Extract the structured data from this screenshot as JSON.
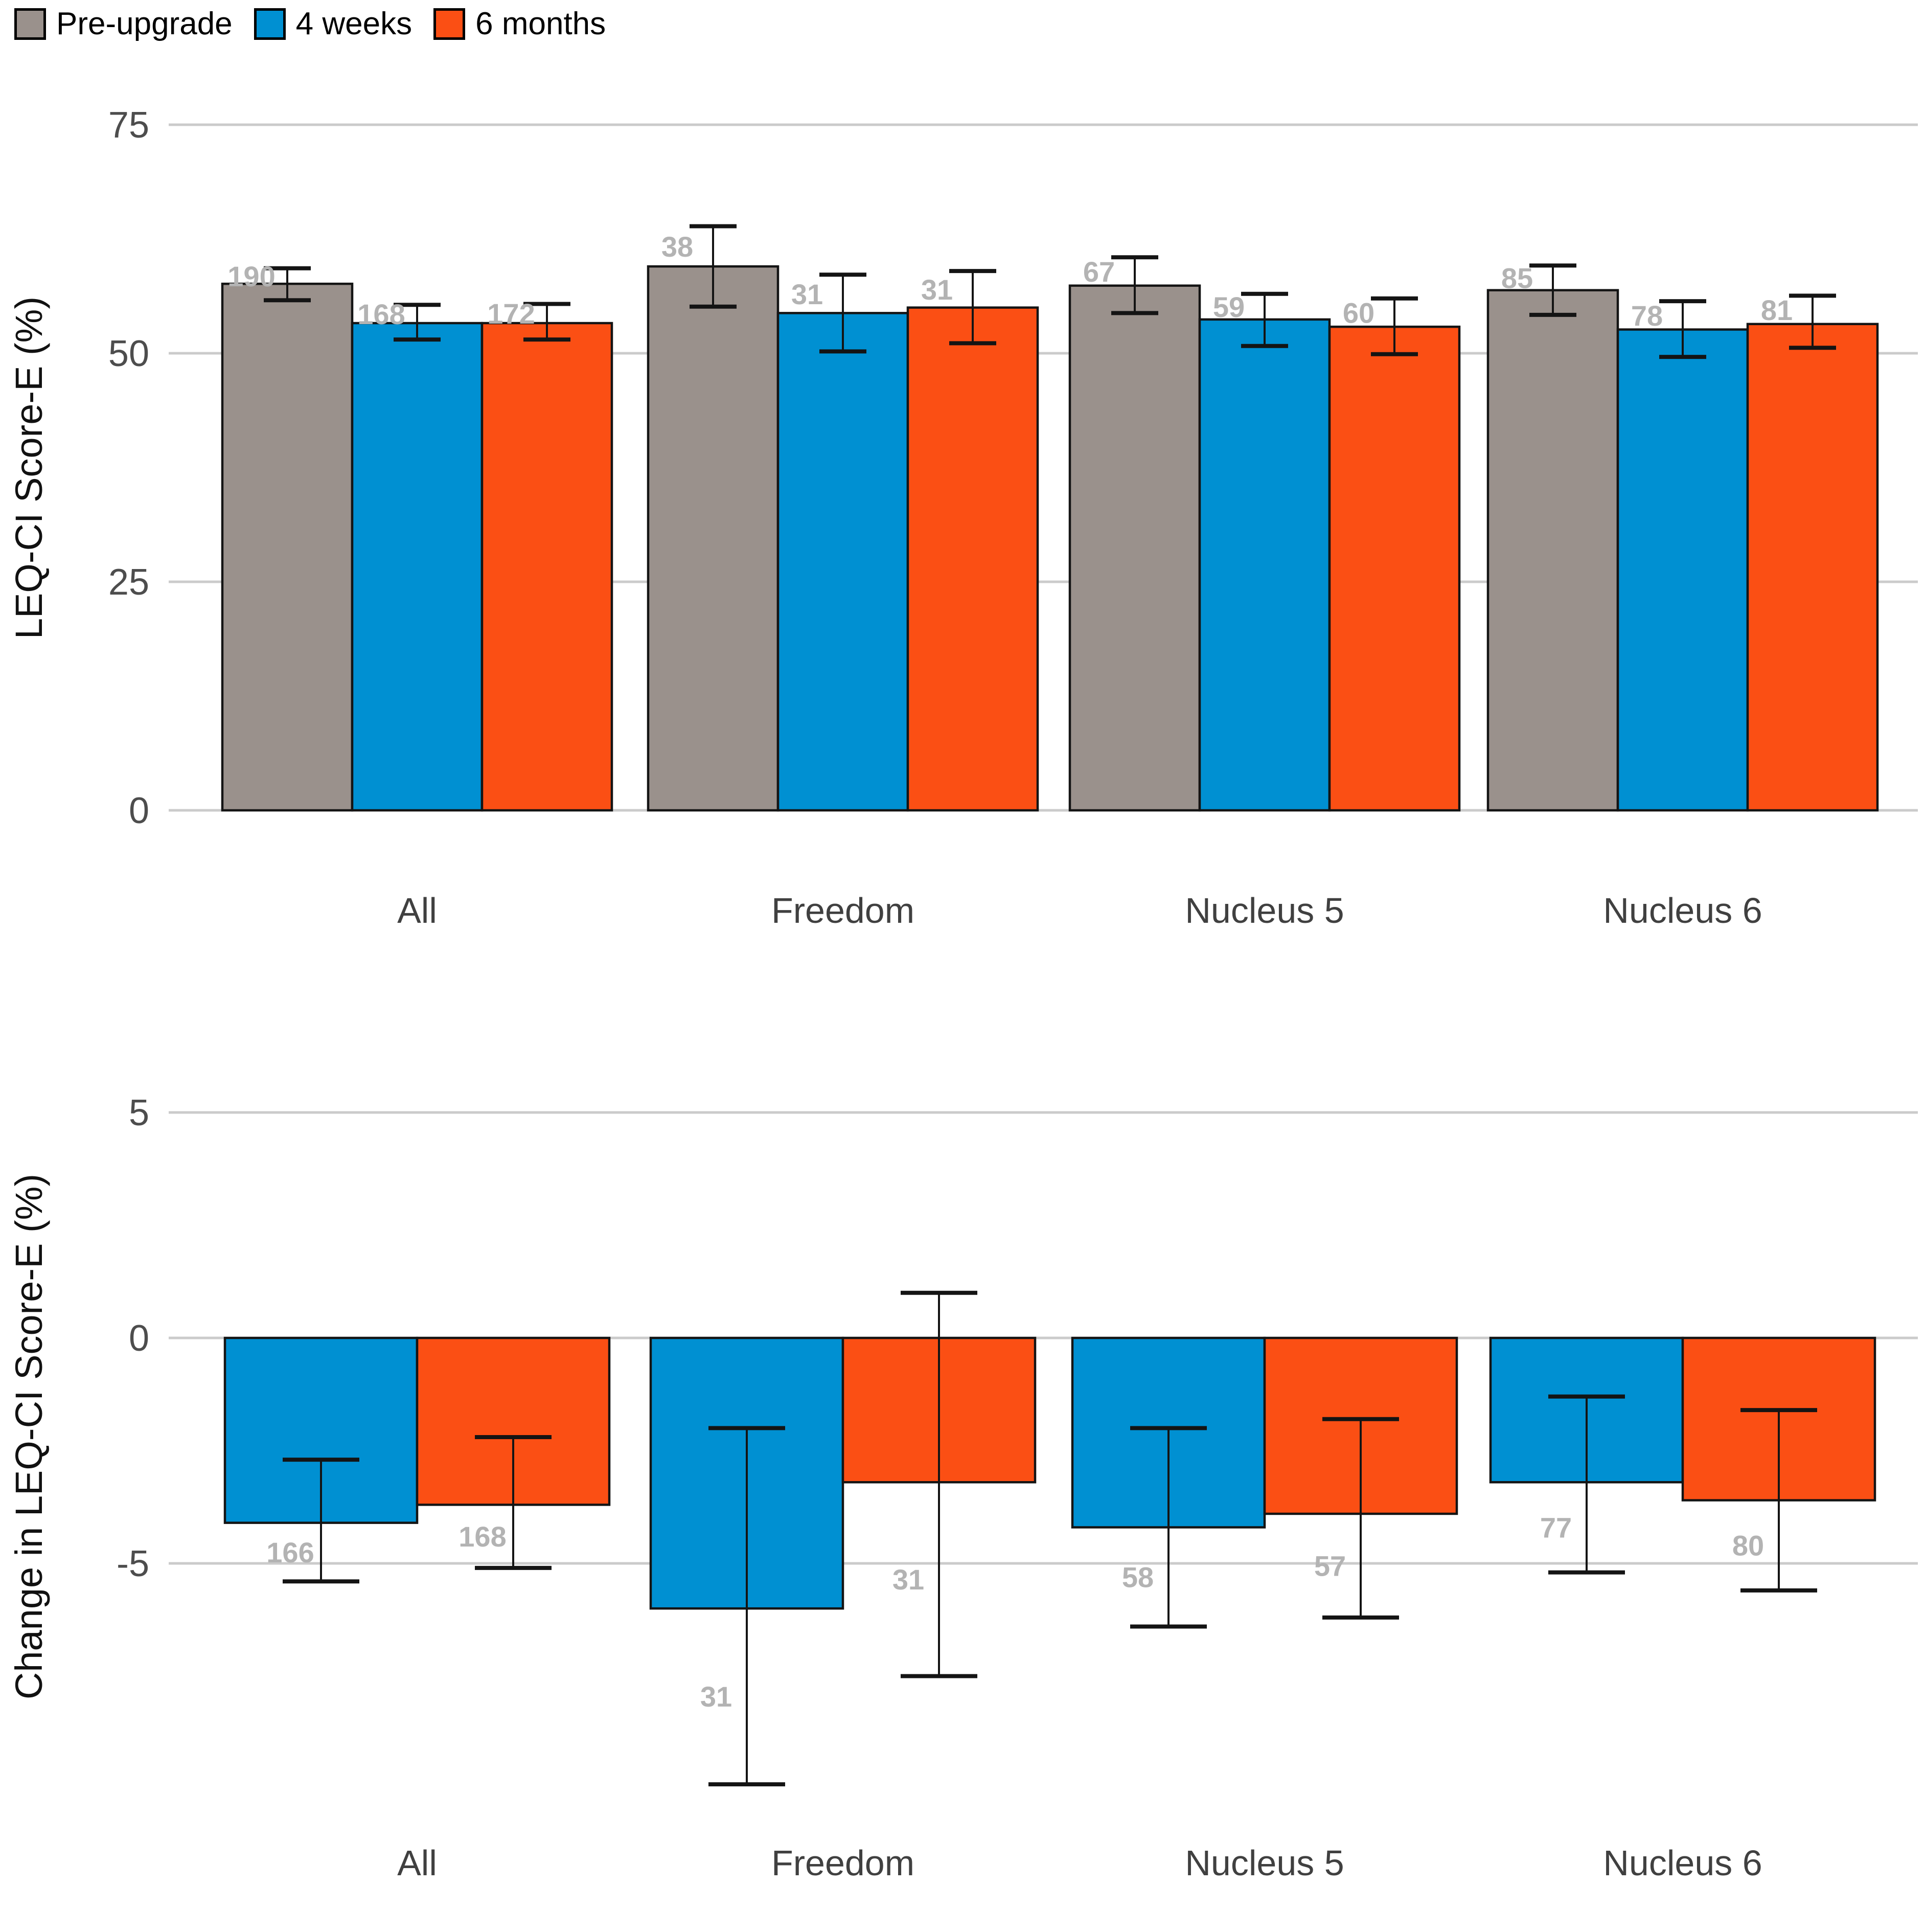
{
  "legend": {
    "items": [
      {
        "label": "Pre-upgrade",
        "color": "#9a918c"
      },
      {
        "label": "4 weeks",
        "color": "#0090d2"
      },
      {
        "label": "6 months",
        "color": "#fb4f14"
      }
    ]
  },
  "colors": {
    "pre_upgrade": "#9a918c",
    "four_weeks": "#0090d2",
    "six_months": "#fb4f14",
    "gridline": "#cbcbcb",
    "bar_outline": "#141414",
    "n_label": "#b3b3b3",
    "tick_label": "#4d4d4d"
  },
  "chart_data": [
    {
      "type": "bar",
      "title": "",
      "xlabel": "",
      "ylabel": "LEQ-CI Score-E (%)",
      "categories": [
        "All",
        "Freedom",
        "Nucleus 5",
        "Nucleus 6"
      ],
      "yticks": [
        0,
        25,
        50,
        75
      ],
      "ylim": [
        0,
        78
      ],
      "grid": "horizontal",
      "legend_position": "top-left",
      "error_bars": true,
      "series": [
        {
          "name": "Pre-upgrade",
          "color": "#9a918c",
          "values": [
            57.6,
            59.5,
            57.4,
            56.9
          ],
          "ci_low": [
            55.8,
            55.1,
            54.4,
            54.2
          ],
          "ci_high": [
            59.3,
            63.9,
            60.5,
            59.6
          ],
          "n": [
            190,
            38,
            67,
            85
          ]
        },
        {
          "name": "4 weeks",
          "color": "#0090d2",
          "values": [
            53.3,
            54.4,
            53.7,
            52.6
          ],
          "ci_low": [
            51.5,
            50.2,
            50.8,
            49.6
          ],
          "ci_high": [
            55.3,
            58.6,
            56.5,
            55.7
          ],
          "n": [
            168,
            31,
            59,
            78
          ]
        },
        {
          "name": "6 months",
          "color": "#fb4f14",
          "values": [
            53.3,
            55.0,
            52.9,
            53.2
          ],
          "ci_low": [
            51.5,
            51.1,
            49.9,
            50.6
          ],
          "ci_high": [
            55.4,
            59.0,
            56.0,
            56.3
          ],
          "n": [
            172,
            31,
            60,
            81
          ]
        }
      ]
    },
    {
      "type": "bar",
      "title": "",
      "xlabel": "",
      "ylabel": "Change in LEQ-CI Score-E (%)",
      "categories": [
        "All",
        "Freedom",
        "Nucleus 5",
        "Nucleus 6"
      ],
      "yticks": [
        -5,
        0,
        5
      ],
      "ylim": [
        -10.6,
        6.4
      ],
      "grid": "horizontal",
      "error_bars": true,
      "series": [
        {
          "name": "4 weeks",
          "color": "#0090d2",
          "values": [
            -4.1,
            -6.0,
            -4.2,
            -3.2
          ],
          "ci_low": [
            -5.4,
            -9.9,
            -6.4,
            -5.2
          ],
          "ci_high": [
            -2.7,
            -2.0,
            -2.0,
            -1.3
          ],
          "n": [
            166,
            31,
            58,
            77
          ]
        },
        {
          "name": "6 months",
          "color": "#fb4f14",
          "values": [
            -3.7,
            -3.2,
            -3.9,
            -3.6
          ],
          "ci_low": [
            -5.1,
            -7.5,
            -6.2,
            -5.6
          ],
          "ci_high": [
            -2.2,
            1.0,
            -1.8,
            -1.6
          ],
          "n": [
            168,
            31,
            57,
            80
          ]
        }
      ]
    }
  ]
}
